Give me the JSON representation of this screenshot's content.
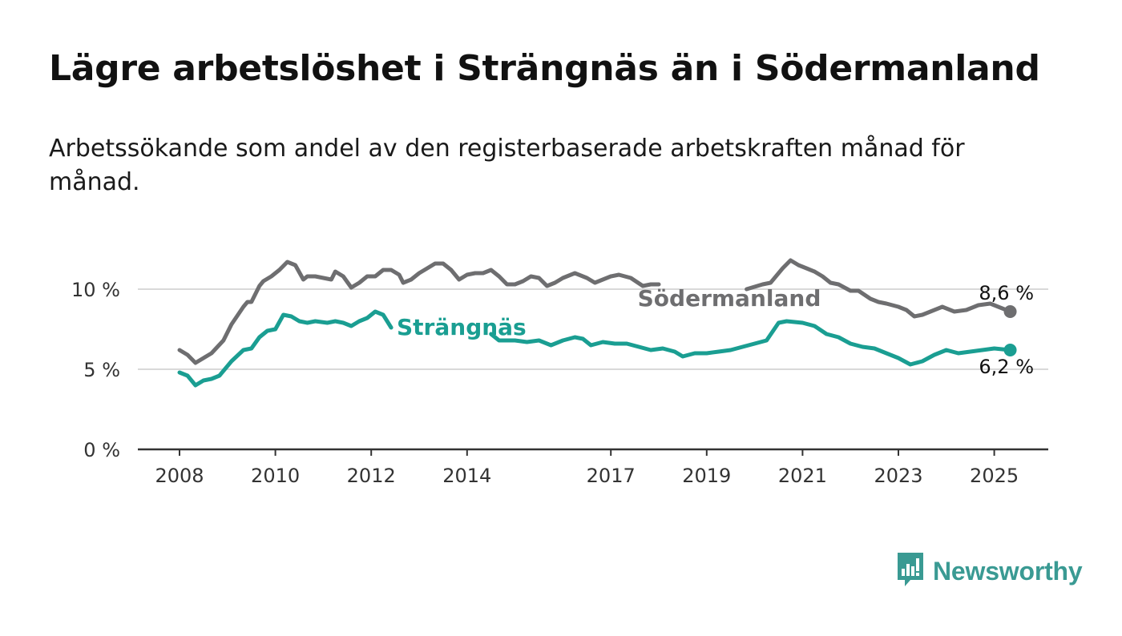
{
  "header": {
    "title": "Lägre arbetslöshet i Strängnäs än i Södermanland",
    "subtitle": "Arbetssökande som andel av den registerbaserade arbetskraften månad för månad."
  },
  "brand": {
    "name": "Newsworthy",
    "icon": "bar-chart-speech-bubble-icon",
    "color": "#3a9a93"
  },
  "chart_data": {
    "type": "line",
    "title": "Lägre arbetslöshet i Strängnäs än i Södermanland",
    "subtitle": "Arbetssökande som andel av den registerbaserade arbetskraften månad för månad.",
    "x_ticks": [
      "2008",
      "2010",
      "2012",
      "2014",
      "2017",
      "2019",
      "2021",
      "2023",
      "2025"
    ],
    "xlim": [
      "2007-01",
      "2026-01"
    ],
    "y_ticks": [
      {
        "value": 0,
        "label": "0 %"
      },
      {
        "value": 5,
        "label": "5 %"
      },
      {
        "value": 10,
        "label": "10 %"
      }
    ],
    "ylim": [
      0,
      10
    ],
    "grid": "horizontal",
    "series": [
      {
        "name": "Södermanland",
        "color": "#6e6e70",
        "end_label": "8,6 %",
        "points": [
          [
            "2008-01",
            6.2
          ],
          [
            "2008-03",
            5.9
          ],
          [
            "2008-05",
            5.4
          ],
          [
            "2008-07",
            5.7
          ],
          [
            "2008-09",
            6.0
          ],
          [
            "2008-12",
            6.8
          ],
          [
            "2009-02",
            7.8
          ],
          [
            "2009-05",
            8.9
          ],
          [
            "2009-06",
            9.2
          ],
          [
            "2009-07",
            9.2
          ],
          [
            "2009-09",
            10.2
          ],
          [
            "2009-10",
            10.5
          ],
          [
            "2009-12",
            10.8
          ],
          [
            "2010-02",
            11.2
          ],
          [
            "2010-04",
            11.7
          ],
          [
            "2010-06",
            11.5
          ],
          [
            "2010-08",
            10.6
          ],
          [
            "2010-09",
            10.8
          ],
          [
            "2010-11",
            10.8
          ],
          [
            "2011-01",
            10.7
          ],
          [
            "2011-03",
            10.6
          ],
          [
            "2011-04",
            11.1
          ],
          [
            "2011-06",
            10.8
          ],
          [
            "2011-08",
            10.1
          ],
          [
            "2011-10",
            10.4
          ],
          [
            "2011-12",
            10.8
          ],
          [
            "2012-02",
            10.8
          ],
          [
            "2012-04",
            11.2
          ],
          [
            "2012-06",
            11.2
          ],
          [
            "2012-08",
            10.9
          ],
          [
            "2012-09",
            10.4
          ],
          [
            "2012-11",
            10.6
          ],
          [
            "2013-01",
            11.0
          ],
          [
            "2013-03",
            11.3
          ],
          [
            "2013-05",
            11.6
          ],
          [
            "2013-07",
            11.6
          ],
          [
            "2013-09",
            11.2
          ],
          [
            "2013-11",
            10.6
          ],
          [
            "2014-01",
            10.9
          ],
          [
            "2014-03",
            11.0
          ],
          [
            "2014-05",
            11.0
          ],
          [
            "2014-07",
            11.2
          ],
          [
            "2014-09",
            10.8
          ],
          [
            "2014-11",
            10.3
          ],
          [
            "2015-01",
            10.3
          ],
          [
            "2015-03",
            10.5
          ],
          [
            "2015-05",
            10.8
          ],
          [
            "2015-07",
            10.7
          ],
          [
            "2015-09",
            10.2
          ],
          [
            "2015-11",
            10.4
          ],
          [
            "2016-01",
            10.7
          ],
          [
            "2016-04",
            11.0
          ],
          [
            "2016-07",
            10.7
          ],
          [
            "2016-09",
            10.4
          ],
          [
            "2016-11",
            10.6
          ],
          [
            "2017-01",
            10.8
          ],
          [
            "2017-03",
            10.9
          ],
          [
            "2017-06",
            10.7
          ],
          [
            "2017-09",
            10.2
          ],
          [
            "2017-11",
            10.3
          ],
          [
            "2018-01",
            10.3
          ]
        ],
        "points_after_label": [
          [
            "2019-11",
            10.0
          ],
          [
            "2020-03",
            10.3
          ],
          [
            "2020-05",
            10.4
          ],
          [
            "2020-08",
            11.3
          ],
          [
            "2020-10",
            11.8
          ],
          [
            "2020-12",
            11.5
          ],
          [
            "2021-02",
            11.3
          ],
          [
            "2021-04",
            11.1
          ],
          [
            "2021-06",
            10.8
          ],
          [
            "2021-08",
            10.4
          ],
          [
            "2021-10",
            10.3
          ],
          [
            "2022-01",
            9.9
          ],
          [
            "2022-03",
            9.9
          ],
          [
            "2022-06",
            9.4
          ],
          [
            "2022-08",
            9.2
          ],
          [
            "2022-10",
            9.1
          ],
          [
            "2023-01",
            8.9
          ],
          [
            "2023-03",
            8.7
          ],
          [
            "2023-05",
            8.3
          ],
          [
            "2023-07",
            8.4
          ],
          [
            "2023-09",
            8.6
          ],
          [
            "2023-12",
            8.9
          ],
          [
            "2024-03",
            8.6
          ],
          [
            "2024-06",
            8.7
          ],
          [
            "2024-09",
            9.0
          ],
          [
            "2024-12",
            9.1
          ],
          [
            "2025-03",
            8.8
          ],
          [
            "2025-05",
            8.6
          ]
        ]
      },
      {
        "name": "Strängnäs",
        "color": "#1a9e92",
        "end_label": "6,2 %",
        "points": [
          [
            "2008-01",
            4.8
          ],
          [
            "2008-03",
            4.6
          ],
          [
            "2008-05",
            4.0
          ],
          [
            "2008-07",
            4.3
          ],
          [
            "2008-09",
            4.4
          ],
          [
            "2008-11",
            4.6
          ],
          [
            "2009-02",
            5.5
          ],
          [
            "2009-05",
            6.2
          ],
          [
            "2009-07",
            6.3
          ],
          [
            "2009-09",
            7.0
          ],
          [
            "2009-11",
            7.4
          ],
          [
            "2010-01",
            7.5
          ],
          [
            "2010-03",
            8.4
          ],
          [
            "2010-05",
            8.3
          ],
          [
            "2010-07",
            8.0
          ],
          [
            "2010-09",
            7.9
          ],
          [
            "2010-11",
            8.0
          ],
          [
            "2011-02",
            7.9
          ],
          [
            "2011-04",
            8.0
          ],
          [
            "2011-06",
            7.9
          ],
          [
            "2011-08",
            7.7
          ],
          [
            "2011-10",
            8.0
          ],
          [
            "2011-12",
            8.2
          ],
          [
            "2012-02",
            8.6
          ],
          [
            "2012-04",
            8.4
          ],
          [
            "2012-06",
            7.6
          ]
        ],
        "points_after_label": [
          [
            "2014-07",
            7.2
          ],
          [
            "2014-09",
            6.8
          ],
          [
            "2015-01",
            6.8
          ],
          [
            "2015-04",
            6.7
          ],
          [
            "2015-07",
            6.8
          ],
          [
            "2015-10",
            6.5
          ],
          [
            "2016-01",
            6.8
          ],
          [
            "2016-04",
            7.0
          ],
          [
            "2016-06",
            6.9
          ],
          [
            "2016-08",
            6.5
          ],
          [
            "2016-11",
            6.7
          ],
          [
            "2017-02",
            6.6
          ],
          [
            "2017-05",
            6.6
          ],
          [
            "2017-08",
            6.4
          ],
          [
            "2017-11",
            6.2
          ],
          [
            "2018-02",
            6.3
          ],
          [
            "2018-05",
            6.1
          ],
          [
            "2018-07",
            5.8
          ],
          [
            "2018-10",
            6.0
          ],
          [
            "2019-01",
            6.0
          ],
          [
            "2019-04",
            6.1
          ],
          [
            "2019-07",
            6.2
          ],
          [
            "2019-10",
            6.4
          ],
          [
            "2020-01",
            6.6
          ],
          [
            "2020-04",
            6.8
          ],
          [
            "2020-07",
            7.9
          ],
          [
            "2020-09",
            8.0
          ],
          [
            "2021-01",
            7.9
          ],
          [
            "2021-04",
            7.7
          ],
          [
            "2021-07",
            7.2
          ],
          [
            "2021-10",
            7.0
          ],
          [
            "2022-01",
            6.6
          ],
          [
            "2022-04",
            6.4
          ],
          [
            "2022-07",
            6.3
          ],
          [
            "2022-10",
            6.0
          ],
          [
            "2023-01",
            5.7
          ],
          [
            "2023-04",
            5.3
          ],
          [
            "2023-07",
            5.5
          ],
          [
            "2023-10",
            5.9
          ],
          [
            "2024-01",
            6.2
          ],
          [
            "2024-04",
            6.0
          ],
          [
            "2024-07",
            6.1
          ],
          [
            "2024-10",
            6.2
          ],
          [
            "2025-01",
            6.3
          ],
          [
            "2025-05",
            6.2
          ]
        ]
      }
    ]
  }
}
